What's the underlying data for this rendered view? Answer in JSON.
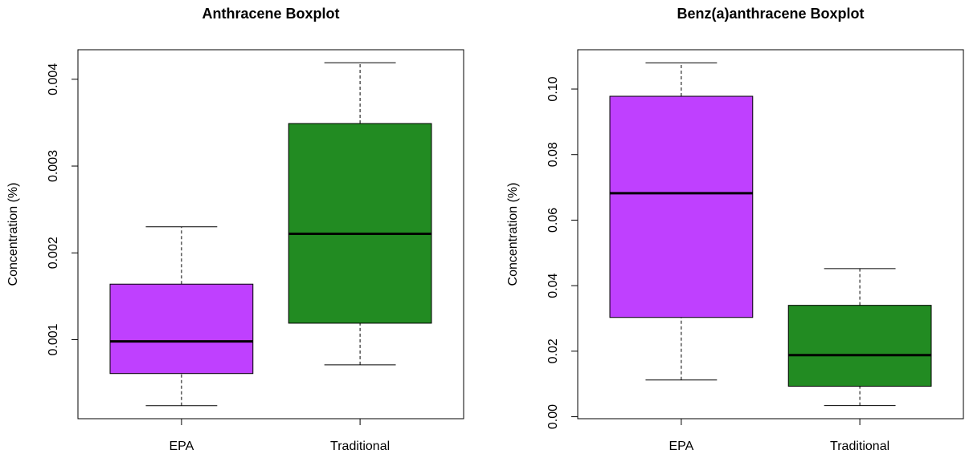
{
  "chart_data": [
    {
      "type": "boxplot",
      "title": "Anthracene Boxplot",
      "y_label": "Concentration (%)",
      "categories": [
        "EPA",
        "Traditional"
      ],
      "colors": [
        "#bf40ff",
        "#228b22"
      ],
      "stats": [
        {
          "min": 0.00024,
          "q1": 0.00061,
          "median": 0.00098,
          "q3": 0.00164,
          "max": 0.0023
        },
        {
          "min": 0.00071,
          "q1": 0.00119,
          "median": 0.00222,
          "q3": 0.00349,
          "max": 0.00419
        }
      ],
      "ylim": [
        9e-05,
        0.00434
      ],
      "yticks": [
        0.001,
        0.002,
        0.003,
        0.004
      ]
    },
    {
      "type": "boxplot",
      "title": "Benz(a)anthracene Boxplot",
      "y_label": "Concentration (%)",
      "categories": [
        "EPA",
        "Traditional"
      ],
      "colors": [
        "#bf40ff",
        "#228b22"
      ],
      "stats": [
        {
          "min": 0.0112,
          "q1": 0.0303,
          "median": 0.0682,
          "q3": 0.0978,
          "max": 0.108
        },
        {
          "min": 0.0034,
          "q1": 0.0093,
          "median": 0.0188,
          "q3": 0.034,
          "max": 0.0452
        }
      ],
      "ylim": [
        -0.0006,
        0.112
      ],
      "yticks": [
        {
          "value": 0,
          "label": "0.00"
        },
        0.02,
        0.04,
        0.06,
        0.08,
        {
          "value": 0.1,
          "label": "0.10"
        }
      ]
    }
  ]
}
